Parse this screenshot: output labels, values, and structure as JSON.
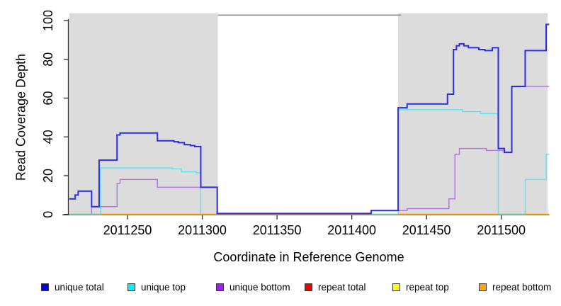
{
  "chart_data": {
    "type": "line",
    "line_style": "step",
    "title": "",
    "xlabel": "Coordinate in Reference Genome",
    "ylabel": "Read Coverage Depth",
    "xlim": [
      2011211,
      2011532
    ],
    "ylim": [
      0,
      103.8
    ],
    "x_ticks": [
      2011250,
      2011300,
      2011350,
      2011400,
      2011450,
      2011500
    ],
    "y_ticks": [
      0,
      20,
      40,
      60,
      80,
      100
    ],
    "grid": false,
    "legend_position": "bottom",
    "shaded_regions": [
      {
        "x0": 2011211,
        "x1": 2011310.5,
        "color": "#DCDCDC"
      },
      {
        "x0": 2011431,
        "x1": 2011531,
        "color": "#DCDCDC"
      }
    ],
    "gap_top_border": {
      "x0": 2011310.5,
      "x1": 2011433,
      "color": "#8C8C8C"
    },
    "series": [
      {
        "name": "repeat total",
        "color": "#E00000",
        "width": 1.2,
        "end": 2011532,
        "points": [
          [
            2011211,
            0
          ]
        ]
      },
      {
        "name": "repeat top",
        "color": "#FFFF00",
        "width": 1.2,
        "end": 2011532,
        "points": [
          [
            2011211,
            0
          ]
        ]
      },
      {
        "name": "unique top",
        "color": "#5FE5EF",
        "width": 1.5,
        "end": 2011532,
        "points": [
          [
            2011211,
            0
          ],
          [
            2011232,
            24
          ],
          [
            2011280,
            23.5
          ],
          [
            2011286,
            22
          ],
          [
            2011296,
            21.5
          ],
          [
            2011299,
            0
          ],
          [
            2011431,
            54
          ],
          [
            2011474,
            53
          ],
          [
            2011486,
            52
          ],
          [
            2011498,
            0
          ],
          [
            2011516,
            18
          ],
          [
            2011530,
            31
          ]
        ]
      },
      {
        "name": "repeat bottom",
        "color": "#FF9E1B",
        "width": 1.8,
        "end": 2011532,
        "points": [
          [
            2011211,
            0
          ]
        ]
      },
      {
        "name": "unique bottom",
        "color": "#B379DE",
        "width": 1.5,
        "end": 2011532,
        "points": [
          [
            2011211,
            0
          ],
          [
            2011226,
            4
          ],
          [
            2011243,
            16
          ],
          [
            2011245,
            18
          ],
          [
            2011270,
            14
          ],
          [
            2011310,
            0.5
          ],
          [
            2011413,
            2
          ],
          [
            2011437,
            3
          ],
          [
            2011465,
            8
          ],
          [
            2011469,
            31
          ],
          [
            2011472,
            34
          ],
          [
            2011490,
            33
          ],
          [
            2011502,
            32
          ],
          [
            2011507,
            66
          ]
        ]
      },
      {
        "name": "unique total",
        "color": "#2B2BE8",
        "width": 2,
        "end": 2011532,
        "points": [
          [
            2011211,
            8
          ],
          [
            2011215,
            10
          ],
          [
            2011217,
            12
          ],
          [
            2011226,
            4
          ],
          [
            2011231,
            28
          ],
          [
            2011243,
            41
          ],
          [
            2011245,
            42
          ],
          [
            2011270,
            38
          ],
          [
            2011281,
            37.5
          ],
          [
            2011284,
            37
          ],
          [
            2011288,
            36
          ],
          [
            2011292,
            35.5
          ],
          [
            2011295,
            35
          ],
          [
            2011299,
            14
          ],
          [
            2011310,
            0.5
          ],
          [
            2011413,
            2
          ],
          [
            2011431,
            55
          ],
          [
            2011437,
            57
          ],
          [
            2011464,
            62
          ],
          [
            2011468,
            85
          ],
          [
            2011470,
            87
          ],
          [
            2011472,
            88
          ],
          [
            2011475,
            87
          ],
          [
            2011478,
            86
          ],
          [
            2011485,
            85
          ],
          [
            2011489,
            84.5
          ],
          [
            2011494,
            86
          ],
          [
            2011498,
            34
          ],
          [
            2011502,
            32
          ],
          [
            2011507,
            66
          ],
          [
            2011516,
            84.5
          ],
          [
            2011530,
            98
          ]
        ]
      }
    ],
    "zero_overlap_segments": {
      "color": "#7BD2AC",
      "width": 1.6,
      "ranges": [
        [
          2011211,
          2011232
        ],
        [
          2011413,
          2011431
        ],
        [
          2011498,
          2011516
        ]
      ]
    }
  },
  "legend": {
    "items": [
      {
        "label": "unique total",
        "color": "#0000EE"
      },
      {
        "label": "unique top",
        "color": "#00F0FF"
      },
      {
        "label": "unique bottom",
        "color": "#A020F0"
      },
      {
        "label": "repeat total",
        "color": "#F00000"
      },
      {
        "label": "repeat top",
        "color": "#FFFF00"
      },
      {
        "label": "repeat bottom",
        "color": "#FFA500"
      }
    ]
  },
  "axis_color": "#2E2E2E",
  "text_color": "#000000"
}
